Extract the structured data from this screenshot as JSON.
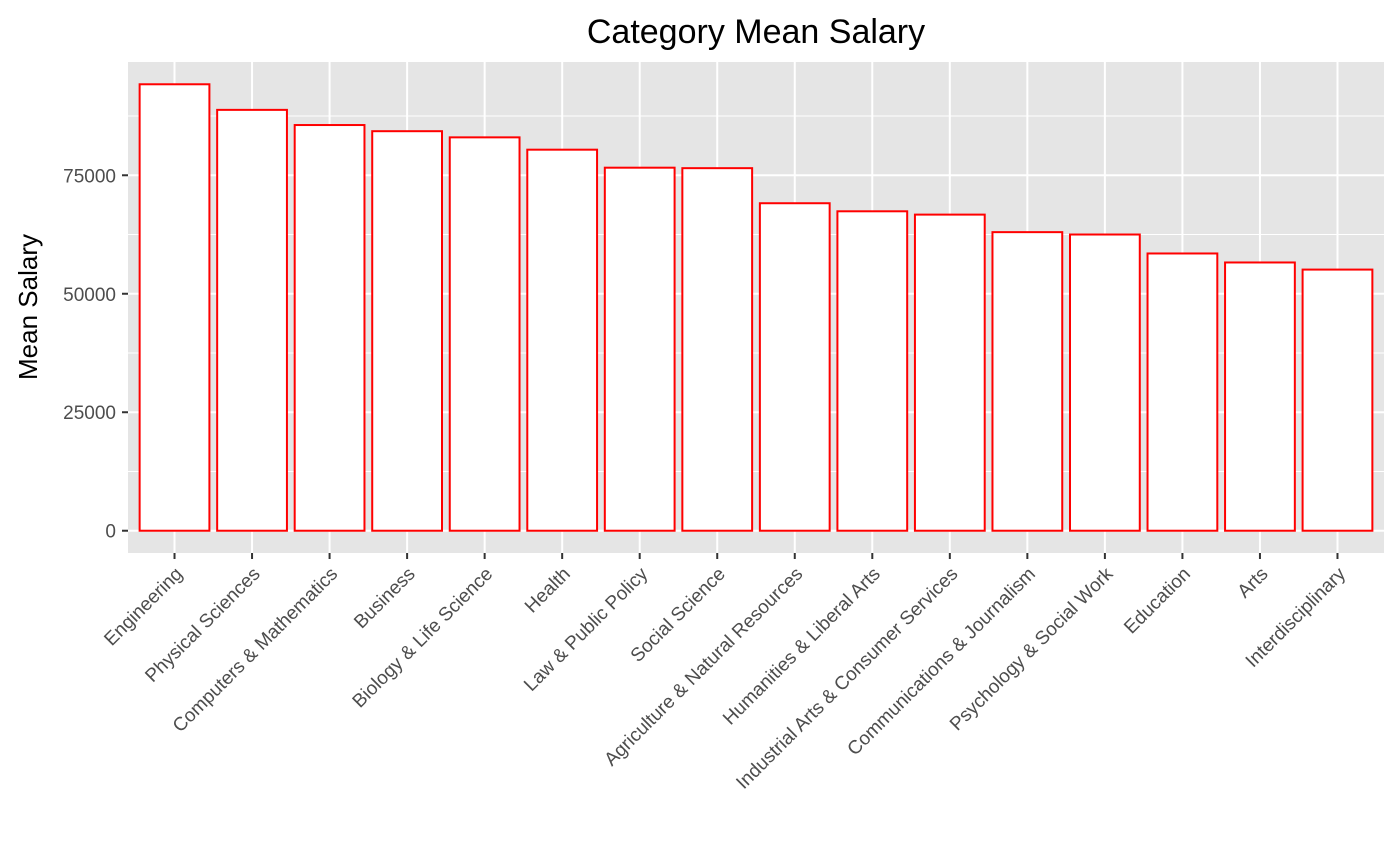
{
  "chart_data": {
    "type": "bar",
    "title": "Category Mean Salary",
    "xlabel": "",
    "ylabel": "Mean Salary",
    "categories": [
      "Engineering",
      "Physical Sciences",
      "Computers & Mathematics",
      "Business",
      "Biology & Life Science",
      "Health",
      "Law & Public Policy",
      "Social Science",
      "Agriculture & Natural Resources",
      "Humanities & Liberal Arts",
      "Industrial Arts & Consumer Services",
      "Communications & Journalism",
      "Psychology & Social Work",
      "Education",
      "Arts",
      "Interdisciplinary"
    ],
    "values": [
      94200,
      88800,
      85600,
      84300,
      83000,
      80400,
      76600,
      76500,
      69100,
      67400,
      66700,
      63000,
      62500,
      58500,
      56600,
      55100
    ],
    "yticks": [
      0,
      25000,
      50000,
      75000
    ],
    "ylim": [
      -4700,
      98900
    ],
    "grid": true,
    "legend": "none",
    "colors": {
      "panel_background": "#e5e5e5",
      "grid": "#ffffff",
      "bar_fill": "#ffffff",
      "bar_outline": "#ff0000",
      "tick_text": "#4d4d4d",
      "tick_mark": "#333333"
    }
  }
}
